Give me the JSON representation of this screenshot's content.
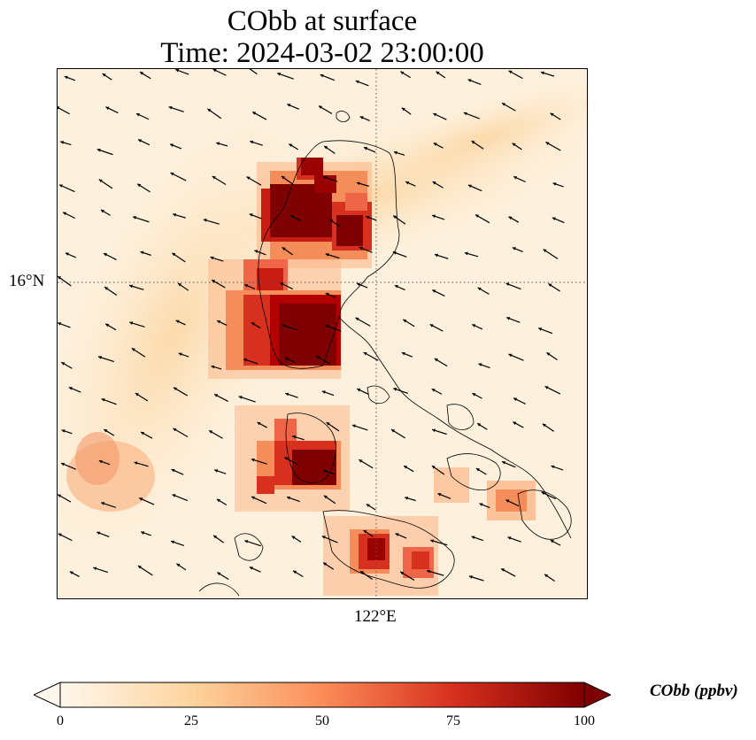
{
  "map": {
    "title_line1": "CObb at surface",
    "title_line2": "Time: 2024-03-02 23:00:00",
    "latitude_label": "16°N",
    "longitude_label": "122°E",
    "colormap": "OrRd",
    "colors": {
      "low": "#fff7ec",
      "mid": "#f48d59",
      "high": "#7f0000",
      "coastline": "#000000",
      "gridline": "#555555"
    }
  },
  "colorbar": {
    "label": "CObb (ppbv)",
    "ticks": [
      "0",
      "25",
      "50",
      "75",
      "100"
    ],
    "min": 0,
    "max": 100,
    "extend": "both"
  }
}
